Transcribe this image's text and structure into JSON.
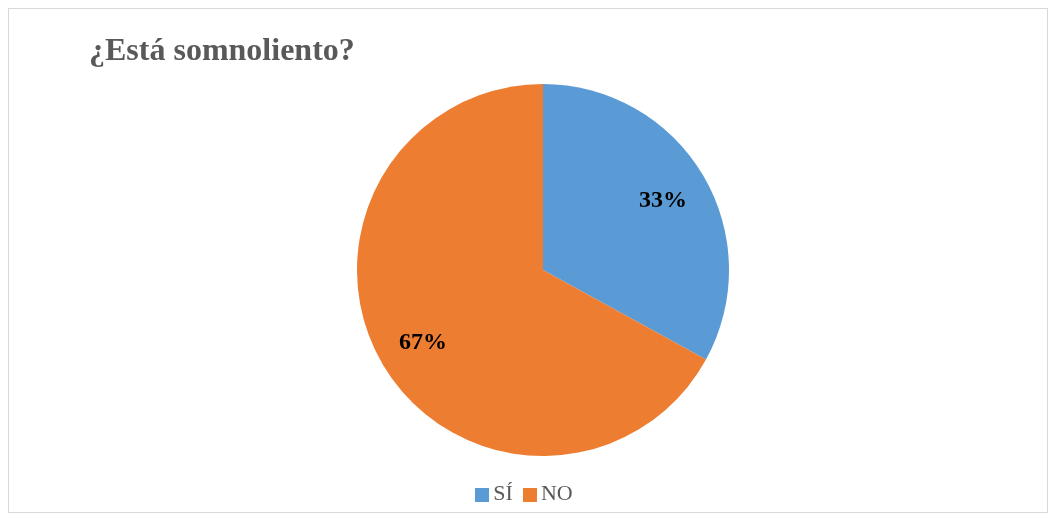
{
  "chart_data": {
    "type": "pie",
    "title": "¿Está somnoliento?",
    "categories": [
      "SÍ",
      "NO"
    ],
    "values": [
      33,
      67
    ],
    "colors": [
      "#5b9bd5",
      "#ed7d31"
    ],
    "value_labels": [
      "33%",
      "67%"
    ],
    "legend": "bottom"
  }
}
